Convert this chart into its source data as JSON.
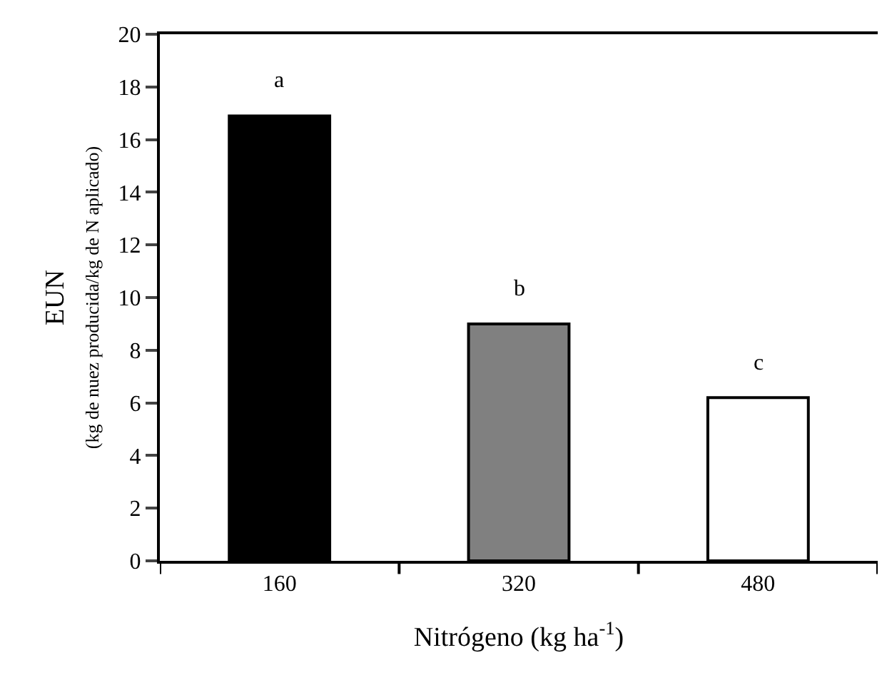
{
  "chart_data": {
    "type": "bar",
    "categories": [
      "160",
      "320",
      "480"
    ],
    "values": [
      16.9,
      9.0,
      6.2
    ],
    "colors": [
      "#000000",
      "#808080",
      "#ffffff"
    ],
    "xlabel": "Nitrógeno (kg ha$^{-1}$)",
    "ylabel": "EUN\n(kg de nuez producida/kg de N aplicado)",
    "ylim": [
      0,
      20
    ],
    "yticks": [
      0,
      2,
      4,
      6,
      8,
      10,
      12,
      14,
      16,
      18,
      20
    ],
    "annotations": [
      "a",
      "b",
      "c"
    ]
  }
}
